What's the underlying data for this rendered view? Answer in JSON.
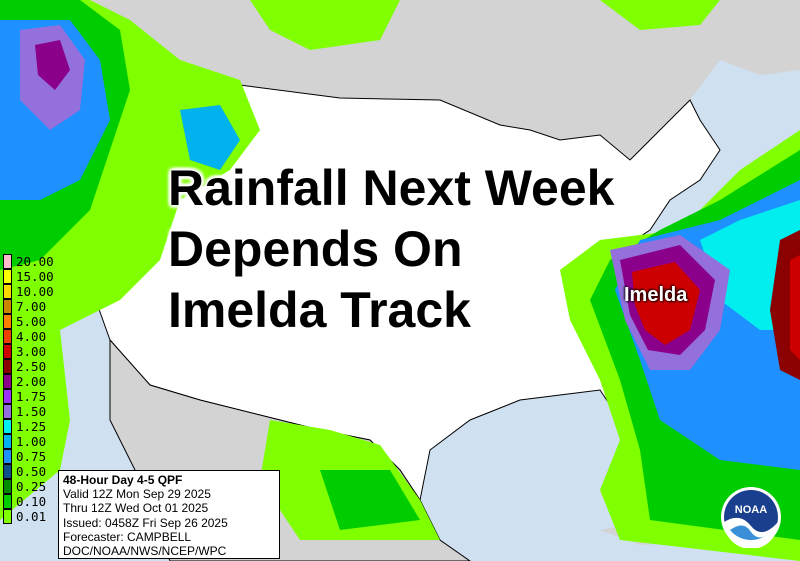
{
  "headline": {
    "lines": [
      "Rainfall Next Week",
      "Depends On",
      "Imelda Track"
    ]
  },
  "storm_label": "Imelda",
  "legend": {
    "units_values": [
      {
        "label": "20.00",
        "color": "#ffbbcc"
      },
      {
        "label": "15.00",
        "color": "#ffff00"
      },
      {
        "label": "10.00",
        "color": "#ffd700"
      },
      {
        "label": "7.00",
        "color": "#cd8500"
      },
      {
        "label": "5.00",
        "color": "#ff8000"
      },
      {
        "label": "4.00",
        "color": "#ee4000"
      },
      {
        "label": "3.00",
        "color": "#cd0000"
      },
      {
        "label": "2.50",
        "color": "#8b0000"
      },
      {
        "label": "2.00",
        "color": "#8b008b"
      },
      {
        "label": "1.75",
        "color": "#9b30ff"
      },
      {
        "label": "1.50",
        "color": "#9370db"
      },
      {
        "label": "1.25",
        "color": "#00eeee"
      },
      {
        "label": "1.00",
        "color": "#00b2ee"
      },
      {
        "label": "0.75",
        "color": "#1e90ff"
      },
      {
        "label": "0.50",
        "color": "#104e8b"
      },
      {
        "label": "0.25",
        "color": "#008b00"
      },
      {
        "label": "0.10",
        "color": "#00cd00"
      },
      {
        "label": "0.01",
        "color": "#7fff00"
      }
    ]
  },
  "info": {
    "title": "48-Hour Day 4-5 QPF",
    "valid": "Valid 12Z Mon Sep 29 2025",
    "thru": "Thru 12Z Wed Oct 01 2025",
    "issued": "Issued: 0458Z Fri Sep 26 2025",
    "forecaster": "Forecaster: CAMPBELL",
    "agency": "DOC/NOAA/NWS/NCEP/WPC"
  },
  "logo": {
    "text": "NOAA"
  },
  "colors": {
    "water": "#cfe0f0",
    "foreign_land": "#d3d3d3",
    "us_land": "#ffffff"
  }
}
